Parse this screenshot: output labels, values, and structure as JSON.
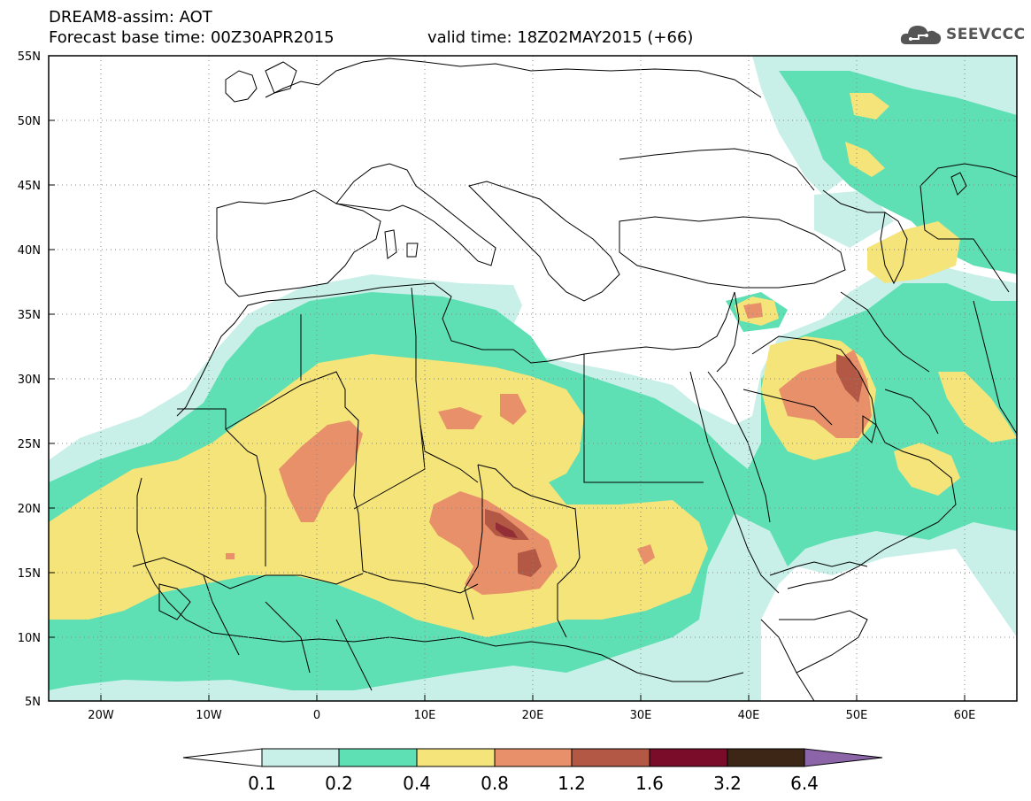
{
  "header": {
    "line1": "DREAM8-assim: AOT",
    "line2": "Forecast base time: 00Z30APR2015",
    "line3": "valid time: 18Z02MAY2015 (+66)",
    "logo_text": "SEEVCCC",
    "logo_icon": "cloud-icon"
  },
  "map": {
    "lat_labels": [
      "55N",
      "50N",
      "45N",
      "40N",
      "35N",
      "30N",
      "25N",
      "20N",
      "15N",
      "10N",
      "5N"
    ],
    "lon_labels": [
      "20W",
      "10W",
      "0",
      "10E",
      "20E",
      "30E",
      "40E",
      "50E",
      "60E"
    ]
  },
  "colorbar": {
    "colors": [
      "#ffffff",
      "#c8f0e8",
      "#5ee0b4",
      "#f4e47a",
      "#e8906a",
      "#b25845",
      "#7a0c2a",
      "#3d2616",
      "#8c64a8"
    ],
    "labels": [
      "0.1",
      "0.2",
      "0.4",
      "0.8",
      "1.2",
      "1.6",
      "3.2",
      "6.4"
    ]
  }
}
